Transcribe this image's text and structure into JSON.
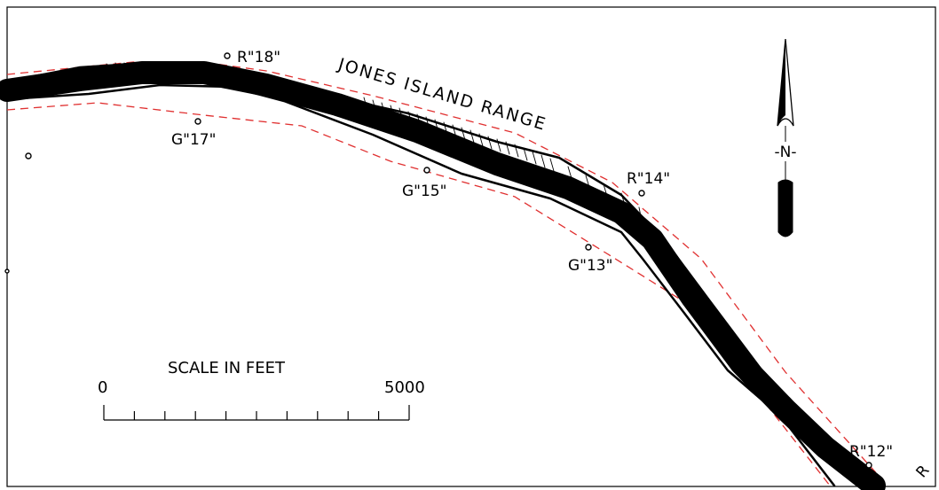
{
  "chart_title": "JONES ISLAND RANGE",
  "buoys": [
    {
      "label": "R\"18\""
    },
    {
      "label": "G\"17\""
    },
    {
      "label": "G\"15\""
    },
    {
      "label": "R\"14\""
    },
    {
      "label": "G\"13\""
    },
    {
      "label": "R\"12\""
    }
  ],
  "north_arrow": {
    "label": "-N-"
  },
  "scale_bar": {
    "title": "SCALE IN FEET",
    "start_label": "0",
    "end_label": "5000",
    "divisions": 10
  },
  "edge_text": "R",
  "colors": {
    "channel_limit": "#e03030",
    "survey_track": "#000000",
    "frame": "#000000"
  }
}
